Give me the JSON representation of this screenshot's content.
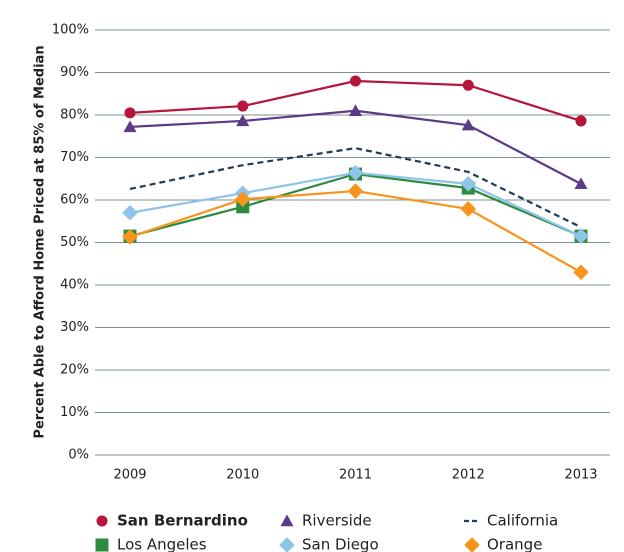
{
  "chart_data": {
    "type": "line",
    "y_label": "Percent Able to Afford Home Priced at 85% of Median",
    "categories": [
      "2009",
      "2010",
      "2011",
      "2012",
      "2013"
    ],
    "ylim": [
      0,
      100
    ],
    "yticks": [
      {
        "value": 0,
        "label": "0%"
      },
      {
        "value": 10,
        "label": "10%"
      },
      {
        "value": 20,
        "label": "20%"
      },
      {
        "value": 30,
        "label": "30%"
      },
      {
        "value": 40,
        "label": "40%"
      },
      {
        "value": 50,
        "label": "50%"
      },
      {
        "value": 60,
        "label": "60%"
      },
      {
        "value": 70,
        "label": "70%"
      },
      {
        "value": 80,
        "label": "80%"
      },
      {
        "value": 90,
        "label": "90%"
      },
      {
        "value": 100,
        "label": "100%"
      }
    ],
    "grid": true,
    "series": [
      {
        "name": "San Bernardino",
        "color": "#b5163a",
        "marker": "circle",
        "bold": true,
        "values": [
          80.5,
          82.1,
          88,
          87,
          78.6
        ]
      },
      {
        "name": "Riverside",
        "color": "#5b3a8a",
        "marker": "triangle",
        "values": [
          77.2,
          78.6,
          81,
          77.6,
          63.8
        ]
      },
      {
        "name": "California",
        "color": "#1f3b5c",
        "marker": "none",
        "dash": true,
        "values": [
          62.6,
          68.2,
          72.2,
          66.6,
          53.6
        ]
      },
      {
        "name": "Los Angeles",
        "color": "#2e8b3e",
        "marker": "square",
        "values": [
          51.5,
          58.4,
          66.1,
          62.8,
          51.5
        ]
      },
      {
        "name": "San Diego",
        "color": "#8ec3ea",
        "marker": "diamond",
        "values": [
          57,
          61.6,
          66.4,
          63.8,
          51.5
        ]
      },
      {
        "name": "Orange",
        "color": "#f7941d",
        "marker": "diamond",
        "values": [
          51.3,
          60.2,
          62.1,
          57.9,
          43
        ]
      }
    ]
  }
}
